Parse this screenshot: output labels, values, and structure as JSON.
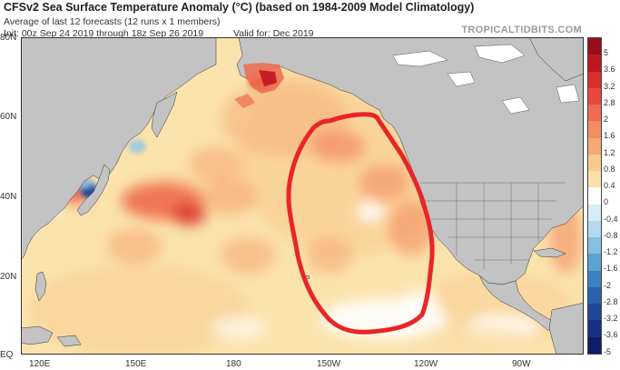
{
  "header": {
    "title": "CFSv2 Sea Surface Temperature Anomaly (°C) (based on 1984-2009 Model Climatology)",
    "subtitle": "Average of last 12 forecasts (12 runs x 1 members)",
    "init": "Init: 00z Sep 24 2019 through 18z Sep 26 2019",
    "valid": "Valid for: Dec 2019",
    "watermark": "TROPICALTIDBITS.COM"
  },
  "map": {
    "lat_labels": [
      "80N",
      "60N",
      "40N",
      "20N",
      "EQ"
    ],
    "lon_labels": [
      "120E",
      "150E",
      "180",
      "150W",
      "120W",
      "90W"
    ],
    "land_color": "#c3c3c3",
    "ocean_base_color": "#fbe3ad",
    "highlight_color": "#e8262a"
  },
  "colorbar": {
    "labels": [
      "5",
      "3.6",
      "3.2",
      "2.8",
      "2",
      "1.6",
      "1.2",
      "0.8",
      "0.4",
      "0",
      "-0.4",
      "-0.8",
      "-1.2",
      "-1.6",
      "-2",
      "-2.8",
      "-3.2",
      "-3.6",
      "-5"
    ],
    "colors": [
      "#9b0c1a",
      "#c0171f",
      "#d9302c",
      "#e8483b",
      "#f06b4f",
      "#f48c61",
      "#f7a975",
      "#f9c98d",
      "#fbe0aa",
      "#ffffff",
      "#d6ecf6",
      "#b2d9ee",
      "#85c0e2",
      "#5aa3d4",
      "#3a82c2",
      "#2a61ae",
      "#1f479a",
      "#173184",
      "#0e1d66"
    ]
  }
}
